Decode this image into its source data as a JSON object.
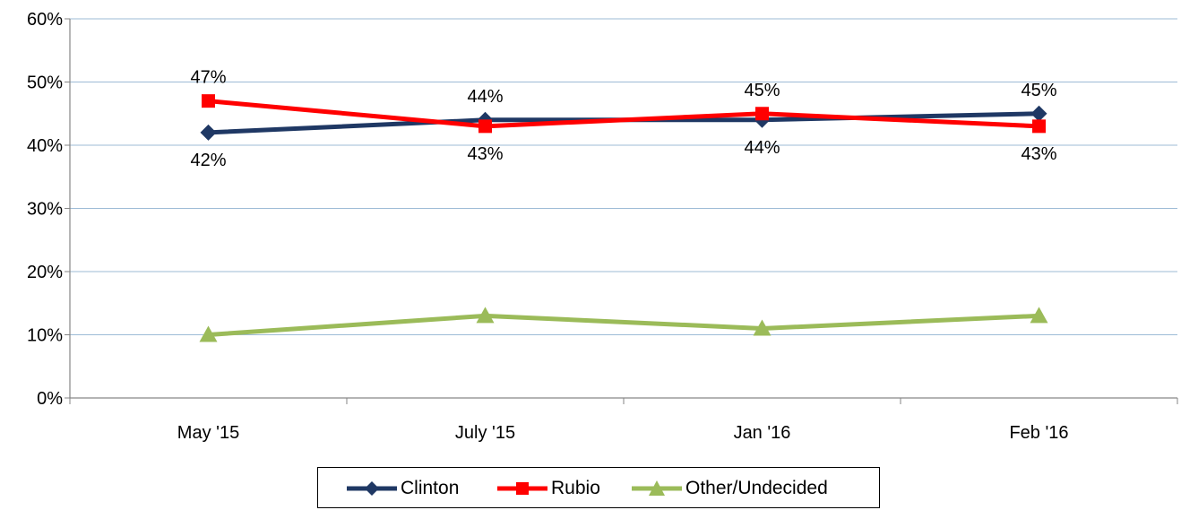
{
  "chart_data": {
    "type": "line",
    "categories": [
      "May '15",
      "July '15",
      "Jan '16",
      "Feb '16"
    ],
    "ylim": [
      0,
      60
    ],
    "yticks": [
      "0%",
      "10%",
      "20%",
      "30%",
      "40%",
      "50%",
      "60%"
    ],
    "grid": true,
    "legend_position": "bottom",
    "series": [
      {
        "name": "Clinton",
        "values": [
          42,
          44,
          44,
          45
        ],
        "labels": [
          "42%",
          "44%",
          "44%",
          "45%"
        ],
        "color": "#1f3864",
        "marker": "diamond"
      },
      {
        "name": "Rubio",
        "values": [
          47,
          43,
          45,
          43
        ],
        "labels": [
          "47%",
          "43%",
          "45%",
          "43%"
        ],
        "color": "#ff0000",
        "marker": "square"
      },
      {
        "name": "Other/Undecided",
        "values": [
          10,
          13,
          11,
          13
        ],
        "labels": [],
        "color": "#9bbb59",
        "marker": "triangle"
      }
    ]
  }
}
